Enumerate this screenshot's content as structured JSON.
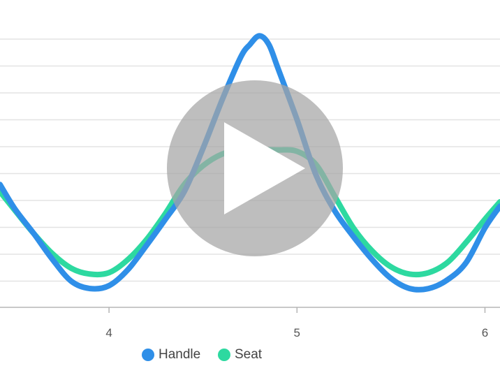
{
  "chart_data": {
    "type": "line",
    "title": "",
    "xlabel": "",
    "ylabel": "",
    "xlim": [
      3.42,
      6.08
    ],
    "ylim": [
      -1.05,
      1.0
    ],
    "grid": true,
    "legend_position": "bottom-left",
    "x_ticks": [
      {
        "value": 4,
        "label": "4"
      },
      {
        "value": 5,
        "label": "5"
      },
      {
        "value": 6,
        "label": "6"
      }
    ],
    "series": [
      {
        "name": "Handle",
        "color": "#2f8fe8",
        "x": [
          3.42,
          3.5,
          3.6,
          3.7,
          3.8,
          3.9,
          4.0,
          4.1,
          4.2,
          4.3,
          4.4,
          4.5,
          4.6,
          4.7,
          4.75,
          4.8,
          4.85,
          4.9,
          5.0,
          5.1,
          5.2,
          5.3,
          5.4,
          5.5,
          5.6,
          5.7,
          5.8,
          5.9,
          6.0,
          6.08
        ],
        "y": [
          -0.2,
          -0.37,
          -0.54,
          -0.72,
          -0.87,
          -0.92,
          -0.9,
          -0.79,
          -0.62,
          -0.44,
          -0.25,
          0.05,
          0.38,
          0.68,
          0.77,
          0.83,
          0.77,
          0.6,
          0.25,
          -0.13,
          -0.38,
          -0.56,
          -0.72,
          -0.85,
          -0.92,
          -0.92,
          -0.86,
          -0.74,
          -0.5,
          -0.35
        ]
      },
      {
        "name": "Seat",
        "color": "#2dd9a0",
        "x": [
          3.42,
          3.5,
          3.6,
          3.7,
          3.8,
          3.9,
          4.0,
          4.1,
          4.2,
          4.3,
          4.4,
          4.5,
          4.6,
          4.7,
          4.8,
          4.9,
          5.0,
          5.1,
          5.2,
          5.3,
          5.4,
          5.5,
          5.6,
          5.7,
          5.8,
          5.9,
          6.0,
          6.08
        ],
        "y": [
          -0.25,
          -0.38,
          -0.54,
          -0.68,
          -0.78,
          -0.82,
          -0.81,
          -0.72,
          -0.58,
          -0.4,
          -0.2,
          -0.07,
          0.01,
          0.04,
          0.04,
          0.04,
          0.03,
          -0.06,
          -0.28,
          -0.5,
          -0.66,
          -0.77,
          -0.82,
          -0.81,
          -0.74,
          -0.6,
          -0.44,
          -0.32
        ]
      }
    ]
  },
  "colors": {
    "grid": "#e3e3e3",
    "axis": "#b5b5b5",
    "overlay": "#a5a5a5"
  },
  "overlay": {
    "icon": "play-icon"
  }
}
